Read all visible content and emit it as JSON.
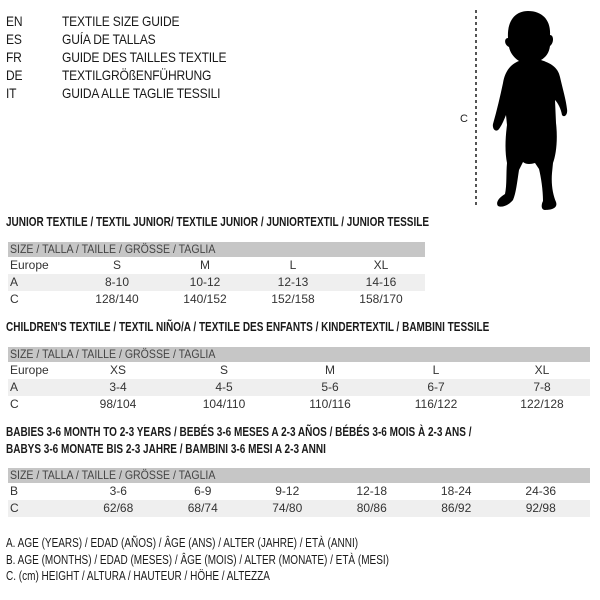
{
  "languages": [
    {
      "code": "EN",
      "title": "TEXTILE SIZE GUIDE"
    },
    {
      "code": "ES",
      "title": "GUÍA DE TALLAS"
    },
    {
      "code": "FR",
      "title": "GUIDE DES TAILLES TEXTILE"
    },
    {
      "code": "DE",
      "title": "TEXTILGRÖßENFÜHRUNG"
    },
    {
      "code": "IT",
      "title": "GUIDA ALLE TAGLIE TESSILI"
    }
  ],
  "figure": {
    "dimension_label": "C"
  },
  "junior": {
    "title": "JUNIOR TEXTILE / TEXTIL JUNIOR/ TEXTILE JUNIOR / JUNIORTEXTIL / JUNIOR TESSILE",
    "header": "SIZE / TALLA / TAILLE / GRÖSSE / TAGLIA",
    "rows": [
      {
        "label": "Europe",
        "values": [
          "S",
          "M",
          "L",
          "XL"
        ]
      },
      {
        "label": "A",
        "values": [
          "8-10",
          "10-12",
          "12-13",
          "14-16"
        ]
      },
      {
        "label": "C",
        "values": [
          "128/140",
          "140/152",
          "152/158",
          "158/170"
        ]
      }
    ]
  },
  "children": {
    "title": "CHILDREN'S TEXTILE / TEXTIL NIÑO/A / TEXTILE DES ENFANTS / KINDERTEXTIL / BAMBINI TESSILE",
    "header": "SIZE / TALLA / TAILLE / GRÖSSE / TAGLIA",
    "rows": [
      {
        "label": "Europe",
        "values": [
          "XS",
          "S",
          "M",
          "L",
          "XL"
        ]
      },
      {
        "label": "A",
        "values": [
          "3-4",
          "4-5",
          "5-6",
          "6-7",
          "7-8"
        ]
      },
      {
        "label": "C",
        "values": [
          "98/104",
          "104/110",
          "110/116",
          "116/122",
          "122/128"
        ]
      }
    ]
  },
  "babies": {
    "title_line1": "BABIES 3-6 MONTH TO 2-3 YEARS / BEBÉS 3-6 MESES A 2-3 AÑOS / BÉBÉS 3-6 MOIS À 2-3 ANS /",
    "title_line2": "BABYS 3-6 MONATE BIS 2-3 JAHRE / BAMBINI 3-6 MESI A 2-3 ANNI",
    "header": "SIZE / TALLA / TAILLE / GRÖSSE / TAGLIA",
    "rows": [
      {
        "label": "B",
        "values": [
          "3-6",
          "6-9",
          "9-12",
          "12-18",
          "18-24",
          "24-36"
        ]
      },
      {
        "label": "C",
        "values": [
          "62/68",
          "68/74",
          "74/80",
          "80/86",
          "86/92",
          "92/98"
        ]
      }
    ]
  },
  "legend": [
    "A. AGE (YEARS) / EDAD (AÑOS) / ÂGE (ANS) / ALTER (JAHRE) / ETÀ (ANNI)",
    "B. AGE (MONTHS) / EDAD (MESES) / ÂGE (MOIS) / ALTER (MONATE) / ETÀ (MESI)",
    "C. (cm) HEIGHT / ALTURA / HAUTEUR / HÖHE / ALTEZZA"
  ]
}
